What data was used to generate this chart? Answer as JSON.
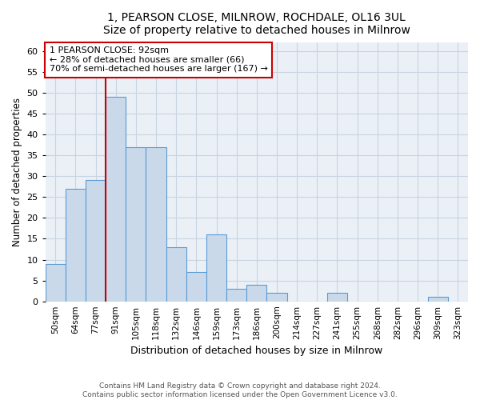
{
  "title_line1": "1, PEARSON CLOSE, MILNROW, ROCHDALE, OL16 3UL",
  "title_line2": "Size of property relative to detached houses in Milnrow",
  "xlabel": "Distribution of detached houses by size in Milnrow",
  "ylabel": "Number of detached properties",
  "categories": [
    "50sqm",
    "64sqm",
    "77sqm",
    "91sqm",
    "105sqm",
    "118sqm",
    "132sqm",
    "146sqm",
    "159sqm",
    "173sqm",
    "186sqm",
    "200sqm",
    "214sqm",
    "227sqm",
    "241sqm",
    "255sqm",
    "268sqm",
    "282sqm",
    "296sqm",
    "309sqm",
    "323sqm"
  ],
  "values": [
    9,
    27,
    29,
    49,
    37,
    37,
    13,
    7,
    16,
    3,
    4,
    2,
    0,
    0,
    2,
    0,
    0,
    0,
    0,
    1,
    0
  ],
  "bar_color": "#c9d9ea",
  "bar_edge_color": "#5b9bd5",
  "vline_x": 3.0,
  "vline_color": "#cc0000",
  "annotation_text": "1 PEARSON CLOSE: 92sqm\n← 28% of detached houses are smaller (66)\n70% of semi-detached houses are larger (167) →",
  "annotation_box_color": "#ffffff",
  "annotation_box_edge": "#cc0000",
  "ylim": [
    0,
    62
  ],
  "yticks": [
    0,
    5,
    10,
    15,
    20,
    25,
    30,
    35,
    40,
    45,
    50,
    55,
    60
  ],
  "grid_color": "#c8d4e0",
  "footer_line1": "Contains HM Land Registry data © Crown copyright and database right 2024.",
  "footer_line2": "Contains public sector information licensed under the Open Government Licence v3.0.",
  "bg_color": "#eaf0f6"
}
